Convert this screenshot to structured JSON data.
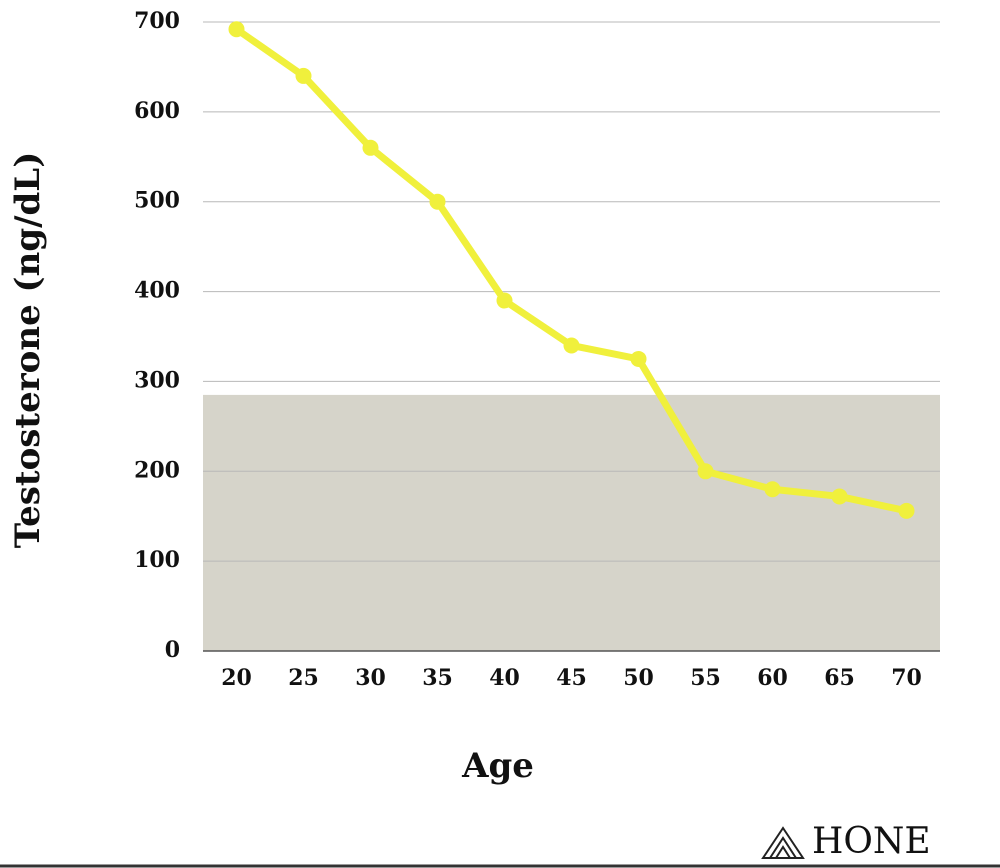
{
  "chart_data": {
    "type": "line",
    "x_label": "Age",
    "y_label": "Testosterone (ng/dL)",
    "x": [
      20,
      25,
      30,
      35,
      40,
      45,
      50,
      55,
      60,
      65,
      70
    ],
    "series": [
      {
        "name": "Testosterone",
        "color": "#f0f03c",
        "values": [
          692,
          640,
          560,
          500,
          390,
          340,
          325,
          200,
          180,
          172,
          156
        ]
      }
    ],
    "xlim": [
      17.5,
      72.5
    ],
    "xticks": [
      20,
      25,
      30,
      35,
      40,
      45,
      50,
      55,
      60,
      65,
      70
    ],
    "ylim": [
      0,
      700
    ],
    "yticks": [
      0,
      100,
      200,
      300,
      400,
      500,
      600,
      700
    ],
    "grid": true,
    "shaded_band": {
      "from": 0,
      "to": 285,
      "color": "#d6d4ca"
    }
  },
  "brand": "HONE"
}
